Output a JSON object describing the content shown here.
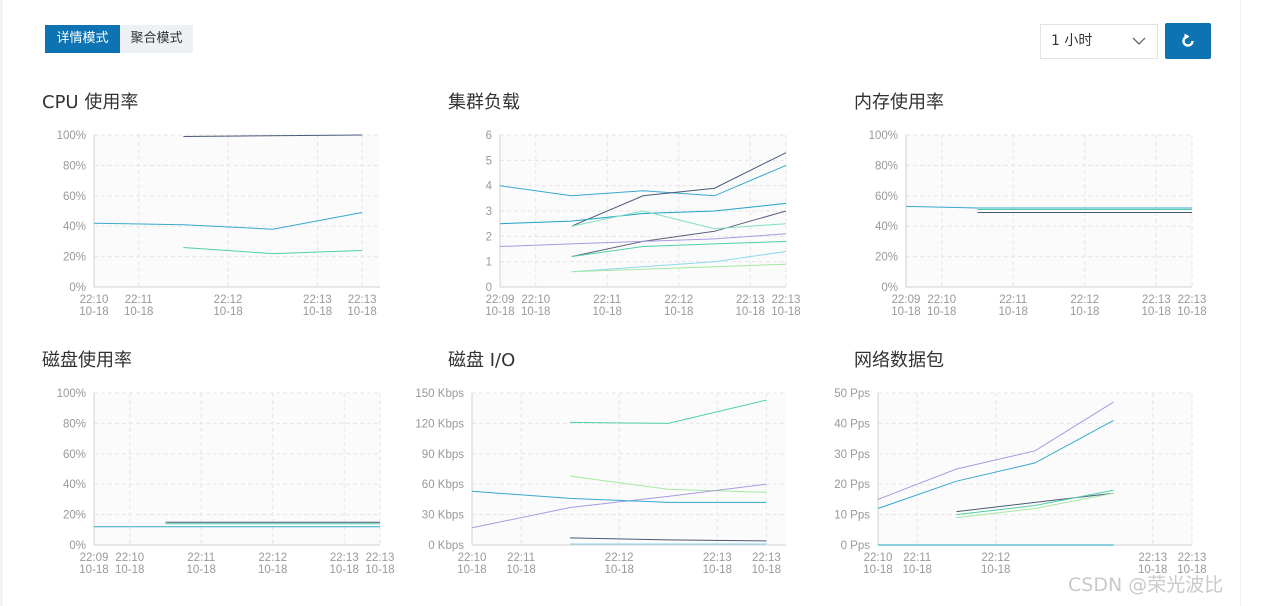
{
  "toolbar": {
    "modes": [
      "详情模式",
      "聚合模式"
    ],
    "time_range": "1 小时",
    "refresh_icon": "refresh-icon",
    "select_icon": "chevron-down-icon"
  },
  "colors": {
    "accent": "#0d73b2",
    "grid": "#e6e6e6",
    "plot_bg": "#fbfbfb",
    "axis_text": "#999999"
  },
  "watermark": "CSDN @荣光波比",
  "chart_data": [
    {
      "id": "cpu",
      "title": "CPU 使用率",
      "type": "line",
      "y_ticks": [
        "0%",
        "20%",
        "40%",
        "60%",
        "80%",
        "100%"
      ],
      "ylim": [
        0,
        100
      ],
      "xlim": [
        0,
        3.2
      ],
      "x_ticks": [
        {
          "x": 0,
          "time": "22:10",
          "date": "10-18"
        },
        {
          "x": 0.5,
          "time": "22:11",
          "date": "10-18"
        },
        {
          "x": 1.5,
          "time": "22:12",
          "date": "10-18"
        },
        {
          "x": 2.5,
          "time": "22:13",
          "date": "10-18"
        },
        {
          "x": 3,
          "time": "22:13",
          "date": "10-18"
        }
      ],
      "series": [
        {
          "color": "#4a5a7a",
          "points": [
            [
              1,
              99
            ],
            [
              3,
              100
            ]
          ]
        },
        {
          "color": "#38a8d0",
          "points": [
            [
              0,
              42
            ],
            [
              1,
              41
            ],
            [
              2,
              38
            ],
            [
              3,
              49
            ]
          ]
        },
        {
          "color": "#4fd1a5",
          "points": [
            [
              1,
              26
            ],
            [
              2,
              22
            ],
            [
              3,
              24
            ]
          ]
        }
      ]
    },
    {
      "id": "load",
      "title": "集群负载",
      "type": "line",
      "y_ticks": [
        "0",
        "1",
        "2",
        "3",
        "4",
        "5",
        "6"
      ],
      "ylim": [
        0,
        6
      ],
      "xlim": [
        0,
        4
      ],
      "x_ticks": [
        {
          "x": 0,
          "time": "22:09",
          "date": "10-18"
        },
        {
          "x": 0.5,
          "time": "22:10",
          "date": "10-18"
        },
        {
          "x": 1.5,
          "time": "22:11",
          "date": "10-18"
        },
        {
          "x": 2.5,
          "time": "22:12",
          "date": "10-18"
        },
        {
          "x": 3.5,
          "time": "22:13",
          "date": "10-18"
        },
        {
          "x": 4,
          "time": "22:13",
          "date": "10-18"
        }
      ],
      "series": [
        {
          "color": "#38a8d0",
          "points": [
            [
              0,
              4
            ],
            [
              1,
              3.6
            ],
            [
              2,
              3.8
            ],
            [
              3,
              3.6
            ],
            [
              4,
              4.8
            ]
          ]
        },
        {
          "color": "#4a5a7a",
          "points": [
            [
              1,
              2.4
            ],
            [
              2,
              3.6
            ],
            [
              3,
              3.9
            ],
            [
              4,
              5.3
            ]
          ]
        },
        {
          "color": "#1fa1c6",
          "points": [
            [
              0,
              2.5
            ],
            [
              1,
              2.6
            ],
            [
              2,
              2.9
            ],
            [
              3,
              3
            ],
            [
              4,
              3.3
            ]
          ]
        },
        {
          "color": "#5a6280",
          "points": [
            [
              1,
              1.2
            ],
            [
              2,
              1.8
            ],
            [
              3,
              2.2
            ],
            [
              4,
              3
            ]
          ]
        },
        {
          "color": "#7fe0c0",
          "points": [
            [
              1,
              2.4
            ],
            [
              2,
              3
            ],
            [
              3,
              2.3
            ],
            [
              4,
              2.5
            ]
          ]
        },
        {
          "color": "#a89ae0",
          "points": [
            [
              0,
              1.6
            ],
            [
              1,
              1.7
            ],
            [
              2,
              1.8
            ],
            [
              3,
              1.9
            ],
            [
              4,
              2.1
            ]
          ]
        },
        {
          "color": "#4fd1a5",
          "points": [
            [
              1,
              1.2
            ],
            [
              2,
              1.6
            ],
            [
              3,
              1.7
            ],
            [
              4,
              1.8
            ]
          ]
        },
        {
          "color": "#8ed6ec",
          "points": [
            [
              1,
              0.6
            ],
            [
              2,
              0.8
            ],
            [
              3,
              1
            ],
            [
              4,
              1.4
            ]
          ]
        },
        {
          "color": "#a6e8a0",
          "points": [
            [
              1,
              0.6
            ],
            [
              2,
              0.7
            ],
            [
              3,
              0.8
            ],
            [
              4,
              0.9
            ]
          ]
        }
      ]
    },
    {
      "id": "mem",
      "title": "内存使用率",
      "type": "line",
      "y_ticks": [
        "0%",
        "20%",
        "40%",
        "60%",
        "80%",
        "100%"
      ],
      "ylim": [
        0,
        100
      ],
      "xlim": [
        0,
        4
      ],
      "x_ticks": [
        {
          "x": 0,
          "time": "22:09",
          "date": "10-18"
        },
        {
          "x": 0.5,
          "time": "22:10",
          "date": "10-18"
        },
        {
          "x": 1.5,
          "time": "22:11",
          "date": "10-18"
        },
        {
          "x": 2.5,
          "time": "22:12",
          "date": "10-18"
        },
        {
          "x": 3.5,
          "time": "22:13",
          "date": "10-18"
        },
        {
          "x": 4,
          "time": "22:13",
          "date": "10-18"
        }
      ],
      "series": [
        {
          "color": "#38a8d0",
          "points": [
            [
              0,
              53
            ],
            [
              1,
              52
            ],
            [
              2,
              52
            ],
            [
              3,
              52
            ],
            [
              4,
              52
            ]
          ]
        },
        {
          "color": "#4fd1a5",
          "points": [
            [
              1,
              51
            ],
            [
              2,
              51
            ],
            [
              3,
              51
            ],
            [
              4,
              51
            ]
          ]
        },
        {
          "color": "#4a5a7a",
          "points": [
            [
              1,
              49
            ],
            [
              2,
              49
            ],
            [
              3,
              49
            ],
            [
              4,
              49
            ]
          ]
        }
      ]
    },
    {
      "id": "disk",
      "title": "磁盘使用率",
      "type": "line",
      "y_ticks": [
        "0%",
        "20%",
        "40%",
        "60%",
        "80%",
        "100%"
      ],
      "ylim": [
        0,
        100
      ],
      "xlim": [
        0,
        4
      ],
      "x_ticks": [
        {
          "x": 0,
          "time": "22:09",
          "date": "10-18"
        },
        {
          "x": 0.5,
          "time": "22:10",
          "date": "10-18"
        },
        {
          "x": 1.5,
          "time": "22:11",
          "date": "10-18"
        },
        {
          "x": 2.5,
          "time": "22:12",
          "date": "10-18"
        },
        {
          "x": 3.5,
          "time": "22:13",
          "date": "10-18"
        },
        {
          "x": 4,
          "time": "22:13",
          "date": "10-18"
        }
      ],
      "series": [
        {
          "color": "#4a5a7a",
          "points": [
            [
              1,
              15
            ],
            [
              2,
              15
            ],
            [
              3,
              15
            ],
            [
              4,
              15
            ]
          ]
        },
        {
          "color": "#4fd1a5",
          "points": [
            [
              1,
              14
            ],
            [
              2,
              14
            ],
            [
              3,
              14
            ],
            [
              4,
              14
            ]
          ]
        },
        {
          "color": "#38a8d0",
          "points": [
            [
              0,
              12
            ],
            [
              1,
              12
            ],
            [
              2,
              12
            ],
            [
              3,
              12
            ],
            [
              4,
              12
            ]
          ]
        }
      ]
    },
    {
      "id": "disk_io",
      "title": "磁盘 I/O",
      "type": "line",
      "y_ticks": [
        "0 Kbps",
        "30 Kbps",
        "60 Kbps",
        "90 Kbps",
        "120 Kbps",
        "150 Kbps"
      ],
      "ylim": [
        0,
        150
      ],
      "xlim": [
        0,
        3.2
      ],
      "x_ticks": [
        {
          "x": 0,
          "time": "22:10",
          "date": "10-18"
        },
        {
          "x": 0.5,
          "time": "22:11",
          "date": "10-18"
        },
        {
          "x": 1.5,
          "time": "22:12",
          "date": "10-18"
        },
        {
          "x": 2.5,
          "time": "22:13",
          "date": "10-18"
        },
        {
          "x": 3,
          "time": "22:13",
          "date": "10-18"
        }
      ],
      "series": [
        {
          "color": "#4fd1a5",
          "points": [
            [
              1,
              121
            ],
            [
              2,
              120
            ],
            [
              3,
              143
            ]
          ]
        },
        {
          "color": "#a6e8a0",
          "points": [
            [
              1,
              68
            ],
            [
              2,
              55
            ],
            [
              3,
              52
            ]
          ]
        },
        {
          "color": "#a89ae0",
          "points": [
            [
              0,
              17
            ],
            [
              1,
              37
            ],
            [
              2,
              48
            ],
            [
              3,
              60
            ]
          ]
        },
        {
          "color": "#38a8d0",
          "points": [
            [
              0,
              53
            ],
            [
              1,
              46
            ],
            [
              2,
              42
            ],
            [
              3,
              42
            ]
          ]
        },
        {
          "color": "#4a5a7a",
          "points": [
            [
              1,
              7
            ],
            [
              2,
              5
            ],
            [
              3,
              4
            ]
          ]
        },
        {
          "color": "#8ed6ec",
          "points": [
            [
              1,
              1
            ],
            [
              2,
              1
            ],
            [
              3,
              1
            ]
          ]
        }
      ]
    },
    {
      "id": "net",
      "title": "网络数据包",
      "type": "line",
      "y_ticks": [
        "0 Pps",
        "10 Pps",
        "20 Pps",
        "30 Pps",
        "40 Pps",
        "50 Pps"
      ],
      "ylim": [
        0,
        50
      ],
      "xlim": [
        0,
        4
      ],
      "x_ticks": [
        {
          "x": 0,
          "time": "22:10",
          "date": "10-18"
        },
        {
          "x": 0.5,
          "time": "22:11",
          "date": "10-18"
        },
        {
          "x": 1.5,
          "time": "22:12",
          "date": "10-18"
        },
        {
          "x": 3.5,
          "time": "22:13",
          "date": "10-18"
        },
        {
          "x": 4,
          "time": "22:13",
          "date": "10-18"
        }
      ],
      "series": [
        {
          "color": "#a89ae0",
          "points": [
            [
              0,
              15
            ],
            [
              1,
              25
            ],
            [
              2,
              31
            ],
            [
              3,
              47
            ]
          ]
        },
        {
          "color": "#38a8d0",
          "points": [
            [
              0,
              12
            ],
            [
              1,
              21
            ],
            [
              2,
              27
            ],
            [
              3,
              41
            ]
          ]
        },
        {
          "color": "#4a5a7a",
          "points": [
            [
              1,
              11
            ],
            [
              2,
              14
            ],
            [
              3,
              17
            ]
          ]
        },
        {
          "color": "#4fd1a5",
          "points": [
            [
              1,
              10
            ],
            [
              2,
              13
            ],
            [
              3,
              18
            ]
          ]
        },
        {
          "color": "#a6e8a0",
          "points": [
            [
              1,
              9
            ],
            [
              2,
              12
            ],
            [
              3,
              17
            ]
          ]
        },
        {
          "color": "#1fa1c6",
          "points": [
            [
              0,
              0
            ],
            [
              1,
              0
            ],
            [
              2,
              0
            ],
            [
              3,
              0
            ]
          ]
        }
      ]
    }
  ]
}
